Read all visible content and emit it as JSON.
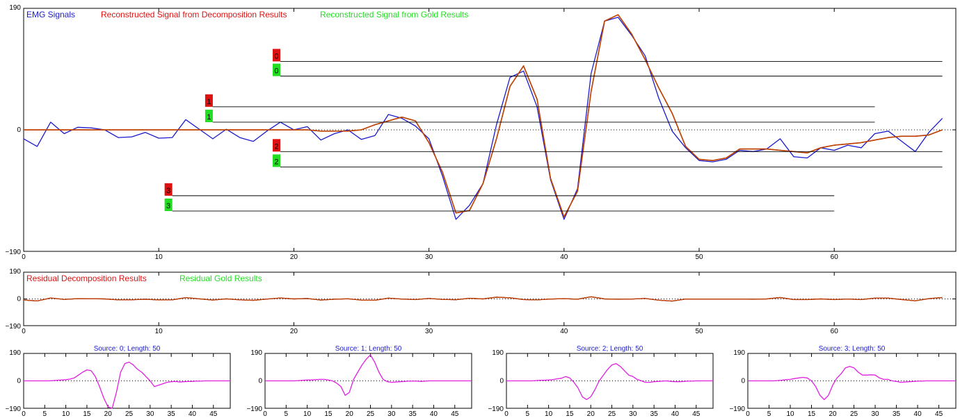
{
  "colors": {
    "emg": "#1a1acc",
    "decomp": "#dd1111",
    "gold": "#22dd22",
    "recon_line": "#b84a00",
    "template": "#e020e0",
    "source_title": "#1a1acc"
  },
  "chart_data": [
    {
      "type": "line",
      "id": "main",
      "xlim": [
        0,
        69
      ],
      "ylim": [
        -190,
        190
      ],
      "y_ticks": [
        -190,
        0,
        190
      ],
      "x_ticks": [
        0,
        10,
        20,
        30,
        40,
        50,
        60
      ],
      "legend": [
        "EMG Signals",
        "Reconstructed Signal from Decomposition Results",
        "Reconstructed Signal from Gold Results"
      ],
      "series": [
        {
          "name": "EMG Signals",
          "y": [
            -14,
            -26,
            12,
            -6,
            4,
            3,
            0,
            -12,
            -11,
            -4,
            -13,
            -12,
            16,
            1,
            -14,
            1,
            -12,
            -18,
            -2,
            12,
            0,
            5,
            -16,
            -6,
            0,
            -15,
            -9,
            24,
            18,
            6,
            -14,
            -72,
            -140,
            -118,
            -84,
            8,
            82,
            92,
            36,
            -78,
            -140,
            -92,
            88,
            170,
            176,
            148,
            116,
            50,
            -2,
            -28,
            -48,
            -50,
            -46,
            -32,
            -34,
            -30,
            -14,
            -42,
            -44,
            -28,
            -32,
            -24,
            -28,
            -6,
            -2,
            -18,
            -34,
            -4,
            18
          ],
          "y_half": true
        },
        {
          "name": "Reconstructed Signal from Decomposition Results",
          "y": [
            0,
            0,
            0,
            0,
            0,
            0,
            0,
            0,
            0,
            0,
            0,
            0,
            0,
            0,
            0,
            0,
            0,
            0,
            0,
            0,
            0,
            0,
            -2,
            -2,
            -2,
            0,
            8,
            14,
            20,
            14,
            -20,
            -66,
            -130,
            -126,
            -84,
            -14,
            68,
            100,
            48,
            -76,
            -136,
            -96,
            60,
            170,
            180,
            150,
            110,
            66,
            26,
            -26,
            -46,
            -48,
            -44,
            -30,
            -30,
            -30,
            -32,
            -34,
            -36,
            -28,
            -24,
            -22,
            -20,
            -16,
            -12,
            -10,
            -10,
            -8,
            0
          ],
          "y_half": true
        },
        {
          "name": "Reconstructed Signal from Gold Results",
          "y": [
            0,
            0,
            0,
            0,
            0,
            0,
            0,
            0,
            0,
            0,
            0,
            0,
            0,
            0,
            0,
            0,
            0,
            0,
            0,
            0,
            0,
            0,
            -2,
            -2,
            -2,
            0,
            8,
            14,
            20,
            14,
            -20,
            -66,
            -130,
            -126,
            -84,
            -14,
            68,
            100,
            48,
            -76,
            -136,
            -96,
            60,
            170,
            180,
            150,
            110,
            66,
            26,
            -26,
            -46,
            -48,
            -44,
            -30,
            -30,
            -30,
            -32,
            -34,
            -36,
            -28,
            -24,
            -22,
            -20,
            -16,
            -12,
            -10,
            -10,
            -8,
            0
          ],
          "y_half": true
        }
      ],
      "firing_markers": [
        {
          "label": "0",
          "x_start": 19,
          "x_end": 68,
          "y_decomp": 107,
          "y_gold": 84
        },
        {
          "label": "1",
          "x_start": 14,
          "x_end": 63,
          "y_decomp": 36,
          "y_gold": 12
        },
        {
          "label": "2",
          "x_start": 19,
          "x_end": 68,
          "y_decomp": -34,
          "y_gold": -58
        },
        {
          "label": "3",
          "x_start": 11,
          "x_end": 60,
          "y_decomp": -103,
          "y_gold": -127
        }
      ]
    },
    {
      "type": "line",
      "id": "residual",
      "xlim": [
        0,
        69
      ],
      "ylim": [
        -190,
        190
      ],
      "y_ticks": [
        -190,
        0,
        190
      ],
      "x_ticks": [
        0,
        10,
        20,
        30,
        40,
        50,
        60
      ],
      "legend": [
        "Residual Decomposition Results",
        "Residual Gold Results"
      ],
      "series": [
        {
          "name": "Residual Decomposition Results",
          "y": [
            -14,
            -26,
            12,
            -6,
            4,
            3,
            0,
            -12,
            -11,
            -4,
            -13,
            -12,
            16,
            1,
            -14,
            1,
            -12,
            -18,
            -2,
            12,
            0,
            5,
            -14,
            -4,
            2,
            -15,
            -17,
            10,
            -2,
            -8,
            6,
            -6,
            -10,
            8,
            0,
            22,
            14,
            -8,
            -12,
            -2,
            4,
            -4,
            28,
            0,
            -4,
            -2,
            6,
            -16,
            -28,
            -2,
            -2,
            -2,
            -2,
            -2,
            -4,
            0,
            18,
            -8,
            -8,
            0,
            -8,
            -2,
            -8,
            10,
            10,
            -8,
            -24,
            4,
            18
          ]
        },
        {
          "name": "Residual Gold Results",
          "y": [
            -14,
            -26,
            12,
            -6,
            4,
            3,
            0,
            -12,
            -11,
            -4,
            -13,
            -12,
            16,
            1,
            -14,
            1,
            -12,
            -18,
            -2,
            12,
            0,
            5,
            -14,
            -4,
            2,
            -15,
            -17,
            10,
            -2,
            -8,
            6,
            -6,
            -10,
            8,
            0,
            22,
            14,
            -8,
            -12,
            -2,
            4,
            -4,
            28,
            0,
            -4,
            -2,
            6,
            -16,
            -28,
            -2,
            -2,
            -2,
            -2,
            -2,
            -4,
            0,
            18,
            -8,
            -8,
            0,
            -8,
            -2,
            -8,
            10,
            10,
            -8,
            -24,
            4,
            18
          ]
        }
      ]
    },
    {
      "type": "line",
      "id": "template0",
      "title": "Source: 0;  Length: 50",
      "xlim": [
        0,
        49
      ],
      "ylim": [
        -190,
        190
      ],
      "y_ticks": [
        -190,
        0,
        190
      ],
      "x_ticks": [
        0,
        5,
        10,
        15,
        20,
        25,
        30,
        35,
        40,
        45
      ],
      "values": [
        0,
        0,
        0,
        0,
        0,
        0,
        0,
        2,
        4,
        6,
        8,
        12,
        20,
        40,
        60,
        76,
        70,
        30,
        -40,
        -120,
        -180,
        -200,
        -80,
        60,
        120,
        130,
        110,
        80,
        60,
        30,
        0,
        -40,
        -30,
        -20,
        -10,
        -6,
        -4,
        -8,
        -6,
        -4,
        -4,
        -2,
        -2,
        0,
        0,
        0,
        0,
        0,
        0,
        0
      ]
    },
    {
      "type": "line",
      "id": "template1",
      "title": "Source: 1;  Length: 50",
      "xlim": [
        0,
        49
      ],
      "ylim": [
        -190,
        190
      ],
      "y_ticks": [
        -190,
        0,
        190
      ],
      "x_ticks": [
        0,
        5,
        10,
        15,
        20,
        25,
        30,
        35,
        40,
        45
      ],
      "values": [
        0,
        0,
        0,
        0,
        0,
        0,
        0,
        0,
        2,
        4,
        6,
        6,
        8,
        10,
        10,
        6,
        0,
        -16,
        -40,
        -100,
        -80,
        10,
        60,
        110,
        150,
        180,
        130,
        60,
        10,
        -6,
        -10,
        -8,
        -6,
        -4,
        -2,
        -2,
        -2,
        -4,
        -2,
        0,
        0,
        0,
        0,
        0,
        0,
        0,
        0,
        0,
        0,
        0
      ]
    },
    {
      "type": "line",
      "id": "template2",
      "title": "Source: 2;  Length: 50",
      "xlim": [
        0,
        49
      ],
      "ylim": [
        -190,
        190
      ],
      "y_ticks": [
        -190,
        0,
        190
      ],
      "x_ticks": [
        0,
        5,
        10,
        15,
        20,
        25,
        30,
        35,
        40,
        45
      ],
      "values": [
        0,
        0,
        0,
        0,
        0,
        0,
        0,
        2,
        4,
        4,
        6,
        8,
        14,
        18,
        30,
        20,
        -10,
        -50,
        -110,
        -130,
        -110,
        -60,
        0,
        40,
        80,
        110,
        120,
        100,
        70,
        40,
        30,
        10,
        0,
        -10,
        -10,
        -6,
        -4,
        -2,
        0,
        -4,
        -6,
        -6,
        -4,
        -2,
        -2,
        0,
        0,
        0,
        0,
        0
      ]
    },
    {
      "type": "line",
      "id": "template3",
      "title": "Source: 3;  Length: 50",
      "xlim": [
        0,
        49
      ],
      "ylim": [
        -190,
        190
      ],
      "y_ticks": [
        -190,
        0,
        190
      ],
      "x_ticks": [
        0,
        5,
        10,
        15,
        20,
        25,
        30,
        35,
        40,
        45
      ],
      "values": [
        0,
        0,
        0,
        0,
        0,
        0,
        0,
        2,
        4,
        8,
        10,
        16,
        20,
        24,
        20,
        0,
        -40,
        -100,
        -130,
        -100,
        -30,
        20,
        50,
        90,
        100,
        90,
        60,
        40,
        40,
        42,
        40,
        20,
        10,
        10,
        0,
        -4,
        -10,
        -8,
        -6,
        -4,
        -2,
        -2,
        0,
        0,
        0,
        0,
        0,
        0,
        0,
        0
      ]
    }
  ]
}
